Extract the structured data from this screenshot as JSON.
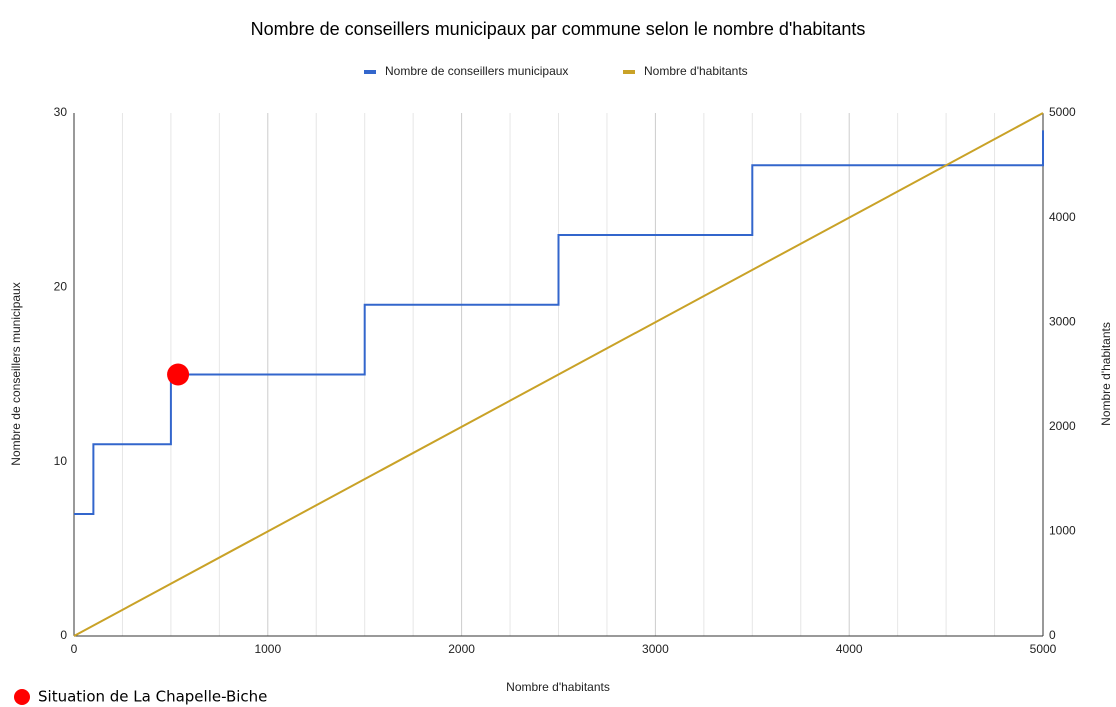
{
  "chart_data": {
    "type": "line",
    "title": "Nombre de conseillers municipaux par commune selon le nombre d'habitants",
    "x_label": "Nombre d'habitants",
    "y_label": "Nombre de conseillers municipaux",
    "y2_label": "Nombre d'habitants",
    "xlim": [
      0,
      5000
    ],
    "xticks": [
      0,
      1000,
      2000,
      3000,
      4000,
      5000
    ],
    "x_minor_grid": [
      250,
      500,
      750,
      1250,
      1500,
      1750,
      2250,
      2500,
      2750,
      3250,
      3500,
      3750,
      4250,
      4500,
      4750
    ],
    "ylim": [
      0,
      30
    ],
    "yticks": [
      0,
      10,
      20,
      30
    ],
    "y2lim": [
      0,
      5000
    ],
    "y2ticks": [
      0,
      1000,
      2000,
      3000,
      4000,
      5000
    ],
    "grid": true,
    "legend": "top",
    "series": [
      {
        "name": "Nombre de conseillers municipaux",
        "color": "#3366cc",
        "x": [
          0,
          100,
          100,
          500,
          500,
          1500,
          1500,
          2500,
          2500,
          3500,
          3500,
          5000,
          5000
        ],
        "values": [
          7,
          7,
          11,
          11,
          15,
          15,
          19,
          19,
          23,
          23,
          27,
          27,
          29
        ]
      },
      {
        "name": "Nombre d'habitants",
        "color": "#c9a227",
        "axis": "y2",
        "x": [
          0,
          5000
        ],
        "values": [
          0,
          5000
        ]
      }
    ],
    "annotation": {
      "label": "Situation de La Chapelle-Biche",
      "x": 537,
      "y": 15,
      "color": "#ff0000"
    }
  }
}
